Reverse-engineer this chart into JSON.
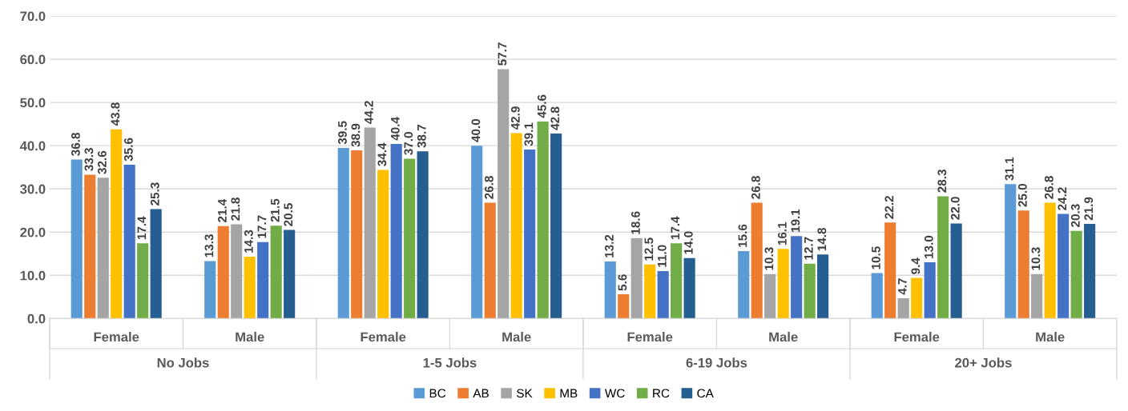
{
  "chart_data": {
    "type": "bar",
    "categories": [
      "Female",
      "Male",
      "Female",
      "Male",
      "Female",
      "Male",
      "Female",
      "Male"
    ],
    "annotations": [
      "No Jobs",
      "1-5 Jobs",
      "6-19 Jobs",
      "20+ Jobs"
    ],
    "series": [
      {
        "name": "BC",
        "color": "#5b9bd5",
        "values": [
          36.8,
          13.3,
          39.5,
          40.0,
          13.2,
          15.6,
          10.5,
          31.1
        ],
        "value_labels": [
          "36.8",
          "13.3",
          "39.5",
          "40.0",
          "13.2",
          "15.6",
          "10.5",
          "31.1"
        ]
      },
      {
        "name": "AB",
        "color": "#ed7d31",
        "values": [
          33.3,
          21.4,
          38.9,
          26.8,
          5.6,
          26.8,
          22.2,
          25.0
        ],
        "value_labels": [
          "33.3",
          "21.4",
          "38.9",
          "26.8",
          "5.6",
          "26.8",
          "22.2",
          "25.0"
        ]
      },
      {
        "name": "SK",
        "color": "#a5a5a5",
        "values": [
          32.6,
          21.8,
          44.2,
          57.7,
          18.6,
          10.3,
          4.7,
          10.3
        ],
        "value_labels": [
          "32.6",
          "21.8",
          "44.2",
          "57.7",
          "18.6",
          "10.3",
          "4.7",
          "10.3"
        ]
      },
      {
        "name": "MB",
        "color": "#ffc000",
        "values": [
          43.8,
          14.3,
          34.4,
          42.9,
          12.5,
          16.1,
          9.4,
          26.8
        ],
        "value_labels": [
          "43.8",
          "14.3",
          "34.4",
          "42.9",
          "12.5",
          "16.1",
          "9.4",
          "26.8"
        ]
      },
      {
        "name": "WC",
        "color": "#4472c4",
        "values": [
          35.6,
          17.7,
          40.4,
          39.1,
          11.0,
          19.1,
          13.0,
          24.2
        ],
        "value_labels": [
          "35.6",
          "17.7",
          "40.4",
          "39.1",
          "11.0",
          "19.1",
          "13.0",
          "24.2"
        ]
      },
      {
        "name": "RC",
        "color": "#70ad47",
        "values": [
          17.4,
          21.5,
          37.0,
          45.6,
          17.4,
          12.7,
          28.3,
          20.3
        ],
        "value_labels": [
          "17.4",
          "21.5",
          "37.0",
          "45.6",
          "17.4",
          "12.7",
          "28.3",
          "20.3"
        ]
      },
      {
        "name": "CA",
        "color": "#255e91",
        "values": [
          25.3,
          20.5,
          38.7,
          42.8,
          14.0,
          14.8,
          22.0,
          21.9
        ],
        "value_labels": [
          "25.3",
          "20.5",
          "38.7",
          "42.8",
          "14.0",
          "14.8",
          "22.0",
          "21.9"
        ]
      }
    ],
    "ylim": [
      0,
      70
    ],
    "yticks": [
      {
        "value": 0,
        "label": "0.0"
      },
      {
        "value": 10,
        "label": "10.0"
      },
      {
        "value": 20,
        "label": "20.0"
      },
      {
        "value": 30,
        "label": "30.0"
      },
      {
        "value": 40,
        "label": "40.0"
      },
      {
        "value": 50,
        "label": "50.0"
      },
      {
        "value": 60,
        "label": "60.0"
      },
      {
        "value": 70,
        "label": "70.0"
      }
    ],
    "grid": "y",
    "legend": "bottom"
  }
}
